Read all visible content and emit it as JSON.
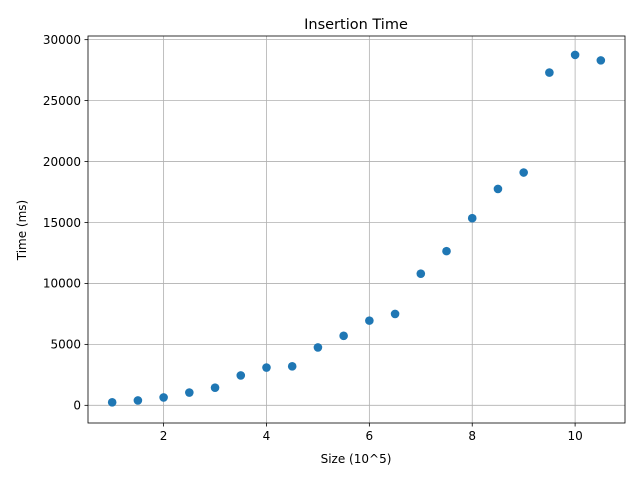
{
  "chart_data": {
    "type": "scatter",
    "title": "Insertion Time",
    "xlabel": "Size (10^5)",
    "ylabel": "Time (ms)",
    "xlim": [
      0.53,
      10.97
    ],
    "ylim": [
      -1450,
      30300
    ],
    "xticks": [
      2,
      4,
      6,
      8,
      10
    ],
    "yticks": [
      0,
      5000,
      10000,
      15000,
      20000,
      25000,
      30000
    ],
    "grid": true,
    "marker_color": "#1f77b4",
    "points": [
      {
        "x": 1.0,
        "y": 250
      },
      {
        "x": 1.5,
        "y": 400
      },
      {
        "x": 2.0,
        "y": 650
      },
      {
        "x": 2.5,
        "y": 1050
      },
      {
        "x": 3.0,
        "y": 1450
      },
      {
        "x": 3.5,
        "y": 2450
      },
      {
        "x": 4.0,
        "y": 3100
      },
      {
        "x": 4.5,
        "y": 3200
      },
      {
        "x": 5.0,
        "y": 4750
      },
      {
        "x": 5.5,
        "y": 5700
      },
      {
        "x": 6.0,
        "y": 6950
      },
      {
        "x": 6.5,
        "y": 7500
      },
      {
        "x": 7.0,
        "y": 10800
      },
      {
        "x": 7.5,
        "y": 12650
      },
      {
        "x": 8.0,
        "y": 15350
      },
      {
        "x": 8.5,
        "y": 17750
      },
      {
        "x": 9.0,
        "y": 19100
      },
      {
        "x": 9.5,
        "y": 27300
      },
      {
        "x": 10.0,
        "y": 28750
      },
      {
        "x": 10.5,
        "y": 28300
      }
    ]
  }
}
